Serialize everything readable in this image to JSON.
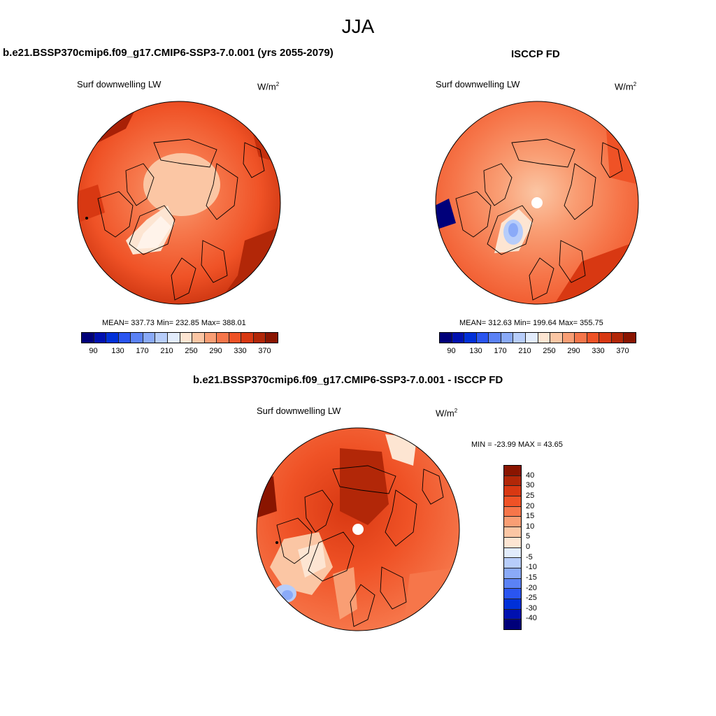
{
  "header": {
    "title": "JJA"
  },
  "panels": {
    "model": {
      "title": "b.e21.BSSP370cmip6.f09_g17.CMIP6-SSP3-7.0.001 (yrs 2055-2079)",
      "variable": "Surf downwelling LW",
      "unit": "W/m",
      "unit_sup": "2",
      "stats": "MEAN= 337.73  Min= 232.85  Max= 388.01"
    },
    "obs": {
      "title": "ISCCP FD",
      "variable": "Surf downwelling LW",
      "unit": "W/m",
      "unit_sup": "2",
      "stats": "MEAN= 312.63  Min= 199.64  Max= 355.75"
    },
    "diff": {
      "title": "b.e21.BSSP370cmip6.f09_g17.CMIP6-SSP3-7.0.001 - ISCCP FD",
      "variable": "Surf downwelling LW",
      "unit": "W/m",
      "unit_sup": "2",
      "stats": "MIN = -23.99 MAX =  43.65"
    }
  },
  "colorbars": {
    "abs_colors": [
      "#00007a",
      "#0011b0",
      "#0030d8",
      "#2a55f0",
      "#5b82f5",
      "#8aaaf8",
      "#b7cdfa",
      "#e2ecfc",
      "#fde5d2",
      "#fbc6a4",
      "#f99e74",
      "#f6764a",
      "#ef5226",
      "#d83812",
      "#b22708",
      "#8a1500"
    ],
    "abs_labels": [
      "90",
      "130",
      "170",
      "210",
      "250",
      "290",
      "330",
      "370"
    ],
    "diff_colors": [
      "#8a1500",
      "#b22708",
      "#d83812",
      "#ef5226",
      "#f6764a",
      "#f99e74",
      "#fbc6a4",
      "#fde5d2",
      "#e2ecfc",
      "#b7cdfa",
      "#8aaaf8",
      "#5b82f5",
      "#2a55f0",
      "#0030d8",
      "#0011b0",
      "#00007a"
    ],
    "diff_labels": [
      "40",
      "30",
      "25",
      "20",
      "15",
      "10",
      "5",
      "0",
      "-5",
      "-10",
      "-15",
      "-20",
      "-25",
      "-30",
      "-40"
    ]
  }
}
